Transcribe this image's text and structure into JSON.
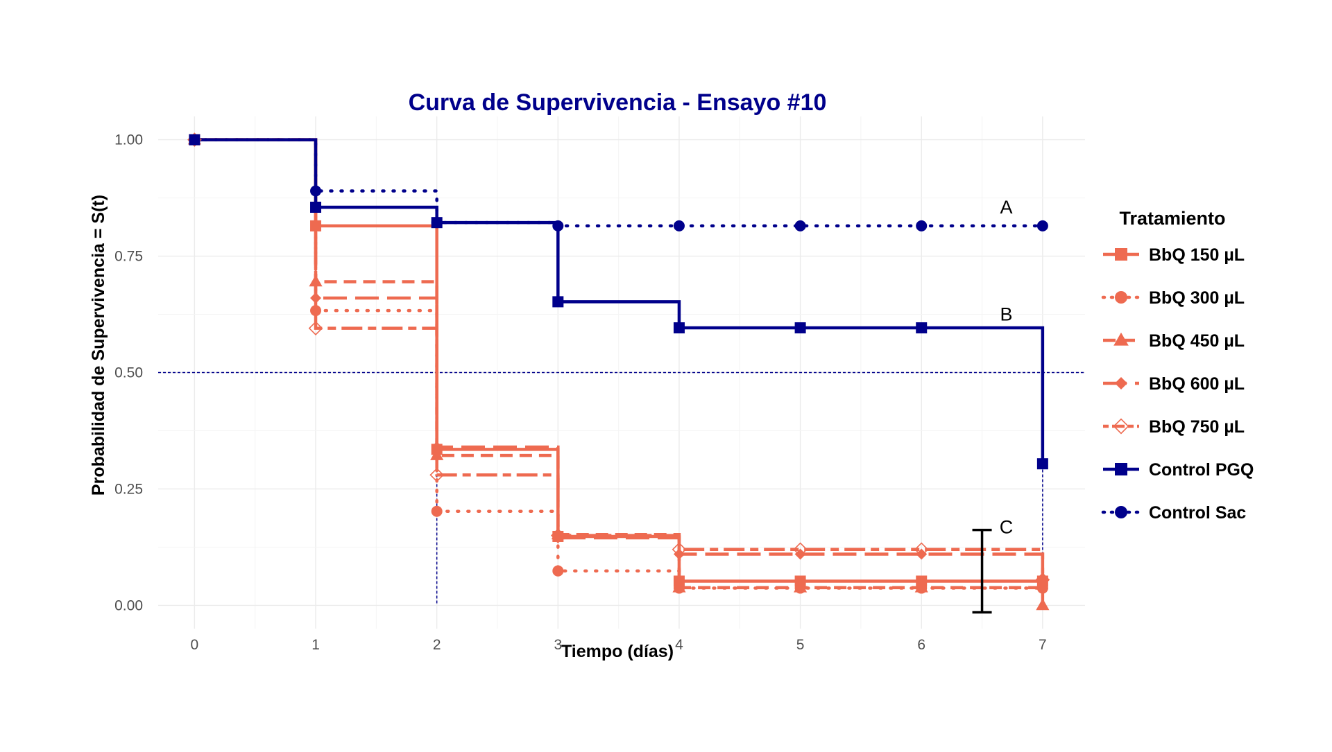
{
  "chart_data": {
    "type": "line",
    "title": "Curva de Supervivencia - Ensayo #10",
    "xlabel": "Tiempo (días)",
    "ylabel": "Probabilidad de Supervivencia = S(t)",
    "xlim": [
      -0.3,
      7.35
    ],
    "ylim": [
      -0.05,
      1.05
    ],
    "x_ticks": [
      0,
      1,
      2,
      3,
      4,
      5,
      6,
      7
    ],
    "y_ticks": [
      0,
      0.25,
      0.5,
      0.75,
      1
    ],
    "y_tick_labels": [
      "0.00",
      "0.25",
      "0.50",
      "0.75",
      "1.00"
    ],
    "grid": true,
    "legend_position": "right",
    "legend_title": "Tratamiento",
    "reference_line": 0.5,
    "median_drop_lines": [
      {
        "x": 2,
        "color": "#00008B"
      },
      {
        "x": 7,
        "color": "#00008B"
      }
    ],
    "series": [
      {
        "name": "BbQ 150 µL",
        "color": "#EE6A50",
        "dash": "solid",
        "shape": "square",
        "x": [
          0,
          1,
          2,
          3,
          4,
          5,
          6,
          7
        ],
        "y": [
          1,
          0.815,
          0.335,
          0.148,
          0.052,
          0.052,
          0.052,
          0.052
        ]
      },
      {
        "name": "BbQ 300 µL",
        "color": "#EE6A50",
        "dash": "dotted",
        "shape": "circle",
        "x": [
          0,
          1,
          2,
          3,
          4,
          5,
          6,
          7
        ],
        "y": [
          1,
          0.633,
          0.202,
          0.074,
          0.037,
          0.037,
          0.037,
          0.037
        ]
      },
      {
        "name": "BbQ 450 µL",
        "color": "#EE6A50",
        "dash": "dashed",
        "shape": "triangle",
        "x": [
          0,
          1,
          2,
          3,
          4,
          5,
          6,
          7
        ],
        "y": [
          1,
          0.695,
          0.322,
          0.152,
          0.038,
          0.038,
          0.038,
          0.0
        ]
      },
      {
        "name": "BbQ 600 µL",
        "color": "#EE6A50",
        "dash": "longdash",
        "shape": "diamond",
        "x": [
          0,
          1,
          2,
          3,
          4,
          5,
          6,
          7
        ],
        "y": [
          1,
          0.66,
          0.34,
          0.145,
          0.11,
          0.11,
          0.11,
          0.035
        ]
      },
      {
        "name": "BbQ 750 µL",
        "color": "#EE6A50",
        "dash": "twodash",
        "shape": "open-diamond",
        "x": [
          0,
          1,
          2,
          3,
          4,
          5,
          6,
          7
        ],
        "y": [
          1,
          0.595,
          0.28,
          0.15,
          0.12,
          0.12,
          0.12,
          0.055
        ]
      },
      {
        "name": "Control PGQ",
        "color": "#00008B",
        "dash": "solid",
        "shape": "square",
        "x": [
          0,
          1,
          2,
          3,
          4,
          5,
          6,
          7
        ],
        "y": [
          1,
          0.855,
          0.822,
          0.652,
          0.596,
          0.596,
          0.596,
          0.304
        ]
      },
      {
        "name": "Control Sac",
        "color": "#00008B",
        "dash": "dotted",
        "shape": "circle",
        "x": [
          0,
          1,
          2,
          3,
          4,
          5,
          6,
          7
        ],
        "y": [
          1,
          0.89,
          0.822,
          0.815,
          0.815,
          0.815,
          0.815,
          0.815
        ]
      }
    ],
    "annotations": [
      {
        "text": "A",
        "x": 6.7,
        "y": 0.855
      },
      {
        "text": "B",
        "x": 6.7,
        "y": 0.625
      },
      {
        "text": "C",
        "x": 6.7,
        "y": 0.168
      }
    ],
    "error_bar": {
      "x": 6.5,
      "low": -0.015,
      "high": 0.162
    }
  }
}
